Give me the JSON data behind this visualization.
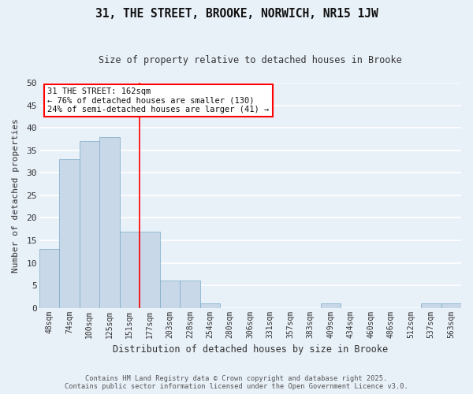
{
  "title": "31, THE STREET, BROOKE, NORWICH, NR15 1JW",
  "subtitle": "Size of property relative to detached houses in Brooke",
  "xlabel": "Distribution of detached houses by size in Brooke",
  "ylabel": "Number of detached properties",
  "bar_color": "#c8d8e8",
  "bar_edge_color": "#7aaac8",
  "background_color": "#e8f0f8",
  "grid_color": "#ffffff",
  "categories": [
    "48sqm",
    "74sqm",
    "100sqm",
    "125sqm",
    "151sqm",
    "177sqm",
    "203sqm",
    "228sqm",
    "254sqm",
    "280sqm",
    "306sqm",
    "331sqm",
    "357sqm",
    "383sqm",
    "409sqm",
    "434sqm",
    "460sqm",
    "486sqm",
    "512sqm",
    "537sqm",
    "563sqm"
  ],
  "values": [
    13,
    33,
    37,
    38,
    17,
    17,
    6,
    6,
    1,
    0,
    0,
    0,
    0,
    0,
    1,
    0,
    0,
    0,
    0,
    1,
    1
  ],
  "ylim": [
    0,
    50
  ],
  "yticks": [
    0,
    5,
    10,
    15,
    20,
    25,
    30,
    35,
    40,
    45,
    50
  ],
  "property_line_x": 4.5,
  "ann_line1": "31 THE STREET: 162sqm",
  "ann_line2": "← 76% of detached houses are smaller (130)",
  "ann_line3": "24% of semi-detached houses are larger (41) →",
  "footer_line1": "Contains HM Land Registry data © Crown copyright and database right 2025.",
  "footer_line2": "Contains public sector information licensed under the Open Government Licence v3.0."
}
